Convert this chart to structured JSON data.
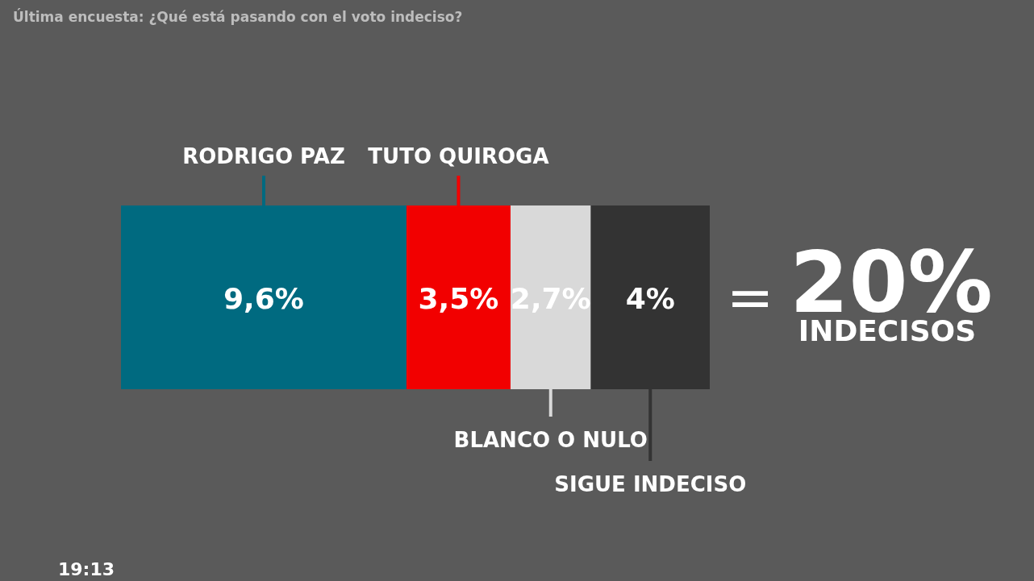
{
  "chart_data": {
    "type": "bar",
    "orientation": "horizontal",
    "stacked": true,
    "title": "Última encuesta: ¿Qué está pasando con el voto indeciso?",
    "categories": [
      null
    ],
    "series": [
      {
        "name": "RODRIGO PAZ",
        "color": "#006a80",
        "values": [
          9.6
        ],
        "value_labels": [
          "9,6%"
        ]
      },
      {
        "name": "TUTO QUIROGA",
        "color": "#f20000",
        "values": [
          3.5
        ],
        "value_labels": [
          "3,5%"
        ]
      },
      {
        "name": "BLANCO O NULO",
        "color": "#d9d9d9",
        "values": [
          2.7
        ],
        "value_labels": [
          "2,7%"
        ]
      },
      {
        "name": "SIGUE INDECISO",
        "color": "#333333",
        "values": [
          4
        ],
        "value_labels": [
          "4%"
        ]
      }
    ],
    "annotations": [
      "=",
      "20%",
      "INDECISOS",
      "19:13"
    ]
  }
}
